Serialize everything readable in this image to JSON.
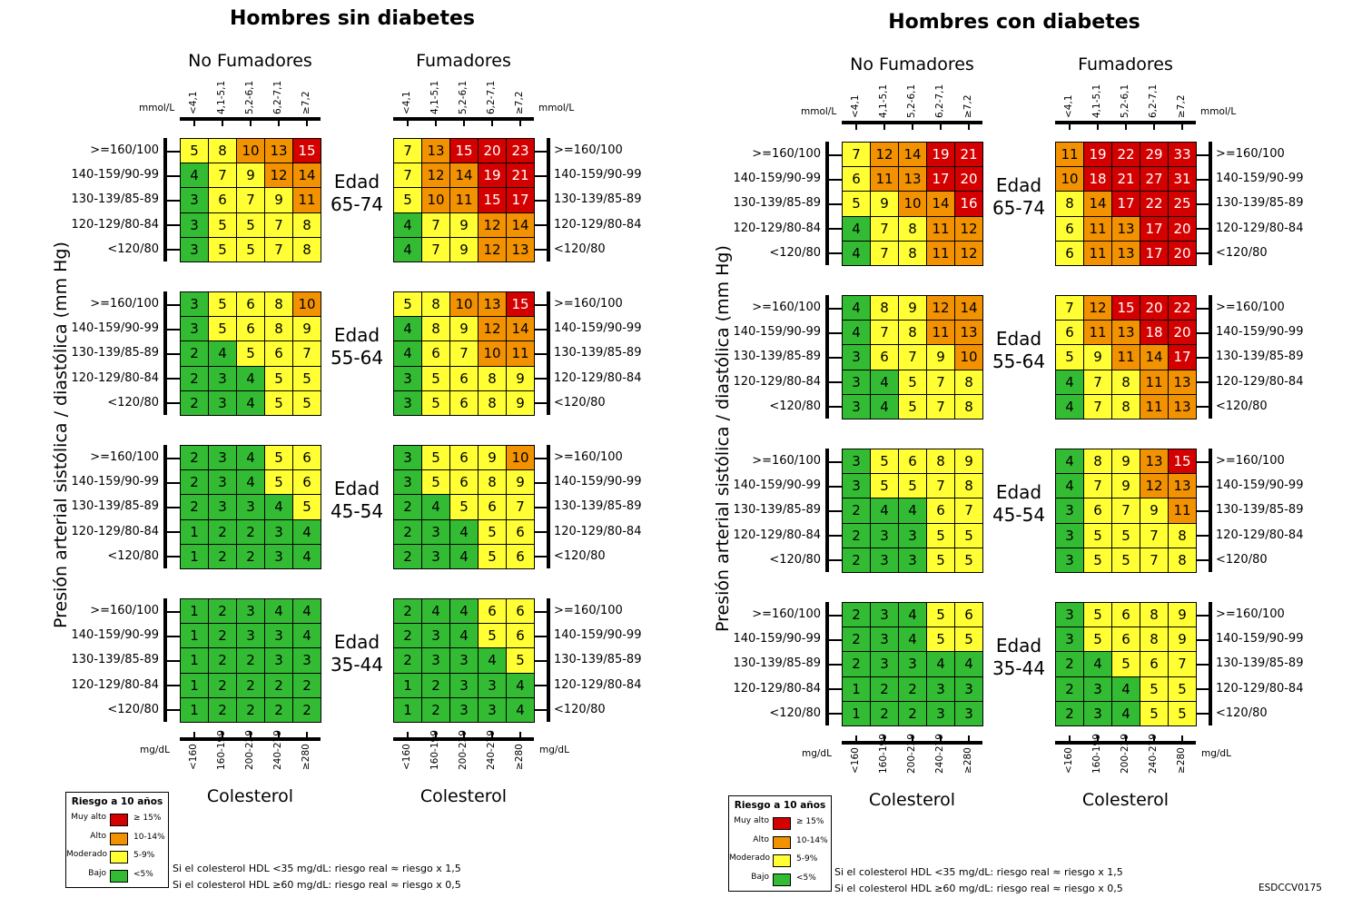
{
  "colors": {
    "very_high": "#d40000",
    "high": "#f39200",
    "moderate": "#ffff33",
    "low": "#33bb33"
  },
  "legend": {
    "title": "Riesgo a 10 años",
    "items": [
      {
        "label": "Muy alto",
        "range": "≥ 15%",
        "color": "#d40000"
      },
      {
        "label": "Alto",
        "range": "10-14%",
        "color": "#f39200"
      },
      {
        "label": "Moderado",
        "range": "5-9%",
        "color": "#ffff33"
      },
      {
        "label": "Bajo",
        "range": "<5%",
        "color": "#33bb33"
      }
    ]
  },
  "notes": [
    "Si el colesterol HDL <35 mg/dL: riesgo real ≈ riesgo x 1,5",
    "Si el colesterol HDL ≥60 mg/dL: riesgo real ≈ riesgo x 0,5"
  ],
  "code": "ESDCCV0175",
  "chart_data": [
    {
      "type": "heatmap",
      "title": "Hombres sin diabetes",
      "ylabel": "Presión arterial sistólica / diastólica (mm Hg)",
      "xlabel": "Colesterol",
      "bp_categories": [
        ">=160/100",
        "140-159/90-99",
        "130-139/85-89",
        "120-129/80-84",
        "<120/80"
      ],
      "chol_mmol_label": "mmol/L",
      "chol_mmol": [
        "<4,1",
        "4,1-5,1",
        "5,2-6,1",
        "6,2-7,1",
        "≥7,2"
      ],
      "chol_mgdl_label": "mg/dL",
      "chol_mgdl": [
        "<160",
        "160-199",
        "200-239",
        "240-279",
        "≥280"
      ],
      "groups": [
        "No Fumadores",
        "Fumadores"
      ],
      "age_label": "Edad",
      "ages": [
        "65-74",
        "55-64",
        "45-54",
        "35-44"
      ],
      "values": {
        "No Fumadores": [
          [
            [
              5,
              8,
              10,
              13,
              15
            ],
            [
              4,
              7,
              9,
              12,
              14
            ],
            [
              3,
              6,
              7,
              9,
              11
            ],
            [
              3,
              5,
              5,
              7,
              8
            ],
            [
              3,
              5,
              5,
              7,
              8
            ]
          ],
          [
            [
              3,
              5,
              6,
              8,
              10
            ],
            [
              3,
              5,
              6,
              8,
              9
            ],
            [
              2,
              4,
              5,
              6,
              7
            ],
            [
              2,
              3,
              4,
              5,
              5
            ],
            [
              2,
              3,
              4,
              5,
              5
            ]
          ],
          [
            [
              2,
              3,
              4,
              5,
              6
            ],
            [
              2,
              3,
              4,
              5,
              6
            ],
            [
              2,
              3,
              3,
              4,
              5
            ],
            [
              1,
              2,
              2,
              3,
              4
            ],
            [
              1,
              2,
              2,
              3,
              4
            ]
          ],
          [
            [
              1,
              2,
              3,
              4,
              4
            ],
            [
              1,
              2,
              3,
              3,
              4
            ],
            [
              1,
              2,
              2,
              3,
              3
            ],
            [
              1,
              2,
              2,
              2,
              2
            ],
            [
              1,
              2,
              2,
              2,
              2
            ]
          ]
        ],
        "Fumadores": [
          [
            [
              7,
              13,
              15,
              20,
              23
            ],
            [
              7,
              12,
              14,
              19,
              21
            ],
            [
              5,
              10,
              11,
              15,
              17
            ],
            [
              4,
              7,
              9,
              12,
              14
            ],
            [
              4,
              7,
              9,
              12,
              13
            ]
          ],
          [
            [
              5,
              8,
              10,
              13,
              15
            ],
            [
              4,
              8,
              9,
              12,
              14
            ],
            [
              4,
              6,
              7,
              10,
              11
            ],
            [
              3,
              5,
              6,
              8,
              9
            ],
            [
              3,
              5,
              6,
              8,
              9
            ]
          ],
          [
            [
              3,
              5,
              6,
              9,
              10
            ],
            [
              3,
              5,
              6,
              8,
              9
            ],
            [
              2,
              4,
              5,
              6,
              7
            ],
            [
              2,
              3,
              4,
              5,
              6
            ],
            [
              2,
              3,
              4,
              5,
              6
            ]
          ],
          [
            [
              2,
              4,
              4,
              6,
              6
            ],
            [
              2,
              3,
              4,
              5,
              6
            ],
            [
              2,
              3,
              3,
              4,
              5
            ],
            [
              1,
              2,
              3,
              3,
              4
            ],
            [
              1,
              2,
              3,
              3,
              4
            ]
          ]
        ]
      }
    },
    {
      "type": "heatmap",
      "title": "Hombres con diabetes",
      "ylabel": "Presión arterial sistólica / diastólica (mm Hg)",
      "xlabel": "Colesterol",
      "bp_categories": [
        ">=160/100",
        "140-159/90-99",
        "130-139/85-89",
        "120-129/80-84",
        "<120/80"
      ],
      "chol_mmol_label": "mmol/L",
      "chol_mmol": [
        "<4,1",
        "4,1-5,1",
        "5,2-6,1",
        "6,2-7,1",
        "≥7,2"
      ],
      "chol_mgdl_label": "mg/dL",
      "chol_mgdl": [
        "<160",
        "160-199",
        "200-239",
        "240-279",
        "≥280"
      ],
      "groups": [
        "No Fumadores",
        "Fumadores"
      ],
      "age_label": "Edad",
      "ages": [
        "65-74",
        "55-64",
        "45-54",
        "35-44"
      ],
      "values": {
        "No Fumadores": [
          [
            [
              7,
              12,
              14,
              19,
              21
            ],
            [
              6,
              11,
              13,
              17,
              20
            ],
            [
              5,
              9,
              10,
              14,
              16
            ],
            [
              4,
              7,
              8,
              11,
              12
            ],
            [
              4,
              7,
              8,
              11,
              12
            ]
          ],
          [
            [
              4,
              8,
              9,
              12,
              14
            ],
            [
              4,
              7,
              8,
              11,
              13
            ],
            [
              3,
              6,
              7,
              9,
              10
            ],
            [
              3,
              4,
              5,
              7,
              8
            ],
            [
              3,
              4,
              5,
              7,
              8
            ]
          ],
          [
            [
              3,
              5,
              6,
              8,
              9
            ],
            [
              3,
              5,
              5,
              7,
              8
            ],
            [
              2,
              4,
              4,
              6,
              7
            ],
            [
              2,
              3,
              3,
              5,
              5
            ],
            [
              2,
              3,
              3,
              5,
              5
            ]
          ],
          [
            [
              2,
              3,
              4,
              5,
              6
            ],
            [
              2,
              3,
              4,
              5,
              5
            ],
            [
              2,
              3,
              3,
              4,
              4
            ],
            [
              1,
              2,
              2,
              3,
              3
            ],
            [
              1,
              2,
              2,
              3,
              3
            ]
          ]
        ],
        "Fumadores": [
          [
            [
              11,
              19,
              22,
              29,
              33
            ],
            [
              10,
              18,
              21,
              27,
              31
            ],
            [
              8,
              14,
              17,
              22,
              25
            ],
            [
              6,
              11,
              13,
              17,
              20
            ],
            [
              6,
              11,
              13,
              17,
              20
            ]
          ],
          [
            [
              7,
              12,
              15,
              20,
              22
            ],
            [
              6,
              11,
              13,
              18,
              20
            ],
            [
              5,
              9,
              11,
              14,
              17
            ],
            [
              4,
              7,
              8,
              11,
              13
            ],
            [
              4,
              7,
              8,
              11,
              13
            ]
          ],
          [
            [
              4,
              8,
              9,
              13,
              15
            ],
            [
              4,
              7,
              9,
              12,
              13
            ],
            [
              3,
              6,
              7,
              9,
              11
            ],
            [
              3,
              5,
              5,
              7,
              8
            ],
            [
              3,
              5,
              5,
              7,
              8
            ]
          ],
          [
            [
              3,
              5,
              6,
              8,
              9
            ],
            [
              3,
              5,
              6,
              8,
              9
            ],
            [
              2,
              4,
              5,
              6,
              7
            ],
            [
              2,
              3,
              4,
              5,
              5
            ],
            [
              2,
              3,
              4,
              5,
              5
            ]
          ]
        ]
      }
    }
  ]
}
